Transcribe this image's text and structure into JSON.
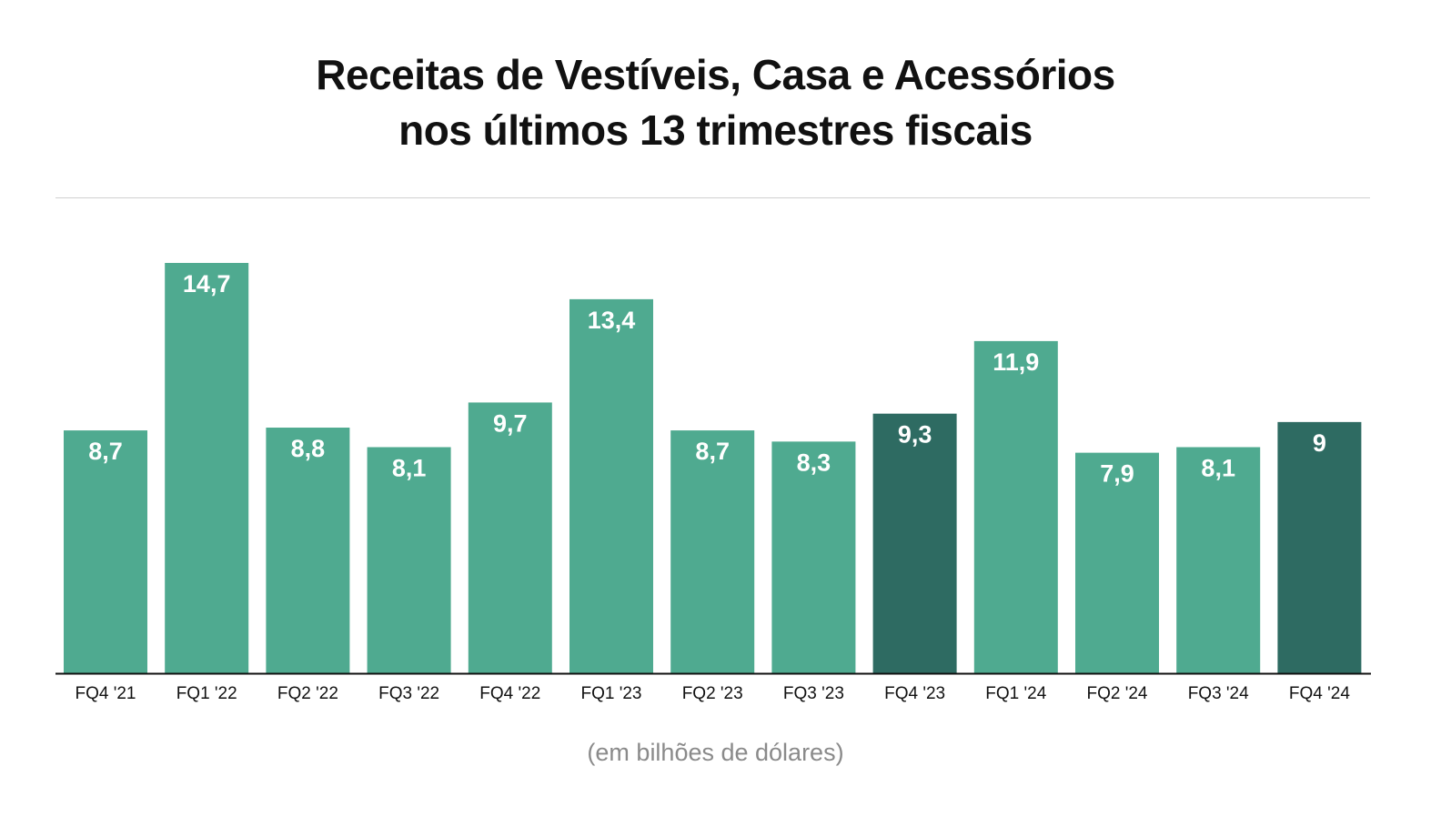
{
  "title_line1": "Receitas de Vestíveis, Casa e Acessórios",
  "title_line2": "nos últimos 13 trimestres fiscais",
  "note": "(em bilhões de dólares)",
  "colors": {
    "bar": "#4faa90",
    "bar_highlight": "#2e6b62",
    "label": "#ffffff",
    "axis": "#111111",
    "divider": "#d0d0d0",
    "note": "#8a8a8a"
  },
  "chart_data": {
    "type": "bar",
    "title": "Receitas de Vestíveis, Casa e Acessórios nos últimos 13 trimestres fiscais",
    "categories": [
      "FQ4 '21",
      "FQ1 '22",
      "FQ2 '22",
      "FQ3 '22",
      "FQ4 '22",
      "FQ1 '23",
      "FQ2 '23",
      "FQ3 '23",
      "FQ4 '23",
      "FQ1 '24",
      "FQ2 '24",
      "FQ3 '24",
      "FQ4 '24"
    ],
    "values": [
      8.7,
      14.7,
      8.8,
      8.1,
      9.7,
      13.4,
      8.7,
      8.3,
      9.3,
      11.9,
      7.9,
      8.1,
      9
    ],
    "value_labels": [
      "8,7",
      "14,7",
      "8,8",
      "8,1",
      "9,7",
      "13,4",
      "8,7",
      "8,3",
      "9,3",
      "11,9",
      "7,9",
      "8,1",
      "9"
    ],
    "highlighted": [
      "FQ4 '23",
      "FQ4 '24"
    ],
    "xlabel": "",
    "ylabel": "",
    "ylim": [
      0,
      14.7
    ],
    "grid": false,
    "legend": "none"
  }
}
